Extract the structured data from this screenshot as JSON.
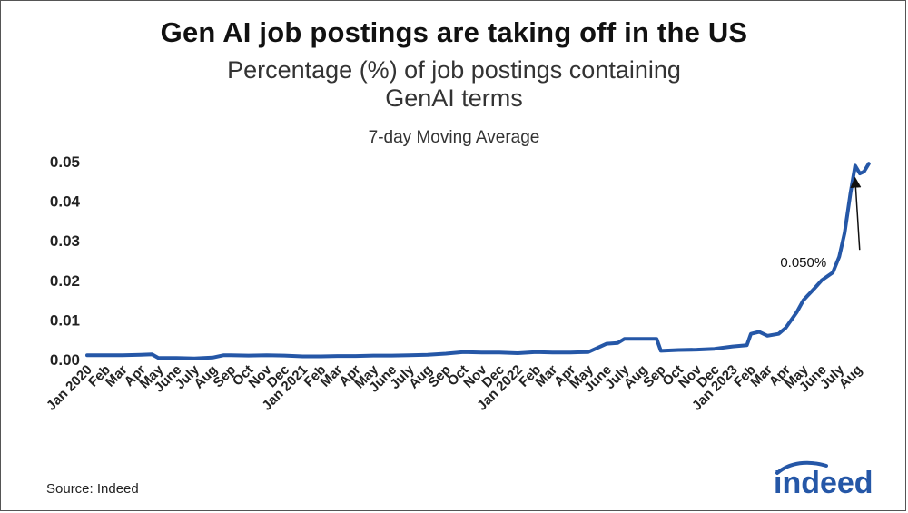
{
  "header": {
    "title": "Gen AI job postings are taking off in the US",
    "subtitle_line1": "Percentage (%) of job postings containing",
    "subtitle_line2": "GenAI terms",
    "caption": "7-day Moving Average"
  },
  "footer": {
    "source": "Source: Indeed",
    "logo_text": "indeed"
  },
  "chart_data": {
    "type": "line",
    "title": "Gen AI job postings are taking off in the US",
    "subtitle": "Percentage (%) of job postings containing GenAI terms",
    "note": "7-day Moving Average",
    "xlabel": "",
    "ylabel": "",
    "ylim": [
      0,
      0.05
    ],
    "yticks": [
      "0.00",
      "0.01",
      "0.02",
      "0.03",
      "0.04",
      "0.05"
    ],
    "grid": false,
    "line_color": "#2557a7",
    "xtick_labels": [
      "Jan 2020",
      "Feb",
      "Mar",
      "Apr",
      "May",
      "June",
      "July",
      "Aug",
      "Sep",
      "Oct",
      "Nov",
      "Dec",
      "Jan 2021",
      "Feb",
      "Mar",
      "Apr",
      "May",
      "June",
      "July",
      "Aug",
      "Sep",
      "Oct",
      "Nov",
      "Dec",
      "Jan 2022",
      "Feb",
      "Mar",
      "Apr",
      "May",
      "June",
      "July",
      "Aug",
      "Sep",
      "Oct",
      "Nov",
      "Dec",
      "Jan 2023",
      "Feb",
      "Mar",
      "Apr",
      "May",
      "June",
      "July",
      "Aug"
    ],
    "series": [
      {
        "x": [
          "2020-01",
          "2020-02",
          "2020-03",
          "2020-04",
          "2020-04-20",
          "2020-05",
          "2020-06",
          "2020-07",
          "2020-08",
          "2020-08-20",
          "2020-09",
          "2020-10",
          "2020-11",
          "2020-12",
          "2021-01",
          "2021-02",
          "2021-03",
          "2021-04",
          "2021-05",
          "2021-06",
          "2021-07",
          "2021-08",
          "2021-09",
          "2021-10",
          "2021-11",
          "2021-12",
          "2022-01",
          "2022-02",
          "2022-03",
          "2022-04",
          "2022-05",
          "2022-06",
          "2022-06-20",
          "2022-07",
          "2022-08",
          "2022-08-25",
          "2022-09",
          "2022-10",
          "2022-11",
          "2022-12",
          "2023-01",
          "2023-01-25",
          "2023-02",
          "2023-02-15",
          "2023-03",
          "2023-03-20",
          "2023-04",
          "2023-04-20",
          "2023-05",
          "2023-05-20",
          "2023-06",
          "2023-06-20",
          "2023-07",
          "2023-07-10",
          "2023-07-20",
          "2023-07-28",
          "2023-08-05",
          "2023-08-12",
          "2023-08-20"
        ],
        "y": [
          0.0011,
          0.0011,
          0.0011,
          0.0012,
          0.0013,
          0.0004,
          0.0004,
          0.0003,
          0.0005,
          0.0011,
          0.0011,
          0.001,
          0.0011,
          0.001,
          0.0008,
          0.0008,
          0.0009,
          0.0009,
          0.001,
          0.001,
          0.0011,
          0.0012,
          0.0015,
          0.0019,
          0.0018,
          0.0018,
          0.0016,
          0.0019,
          0.0018,
          0.0018,
          0.0019,
          0.004,
          0.0042,
          0.0052,
          0.0052,
          0.0052,
          0.0022,
          0.0024,
          0.0025,
          0.0027,
          0.0033,
          0.0036,
          0.0065,
          0.007,
          0.006,
          0.0065,
          0.008,
          0.012,
          0.015,
          0.018,
          0.02,
          0.022,
          0.026,
          0.032,
          0.042,
          0.049,
          0.047,
          0.0475,
          0.0495
        ]
      }
    ],
    "annotations": [
      {
        "text": "0.050%",
        "x": "2023-05",
        "y": 0.0245,
        "arrow_to": {
          "x": "2023-07-28",
          "y": 0.0455
        }
      }
    ]
  }
}
